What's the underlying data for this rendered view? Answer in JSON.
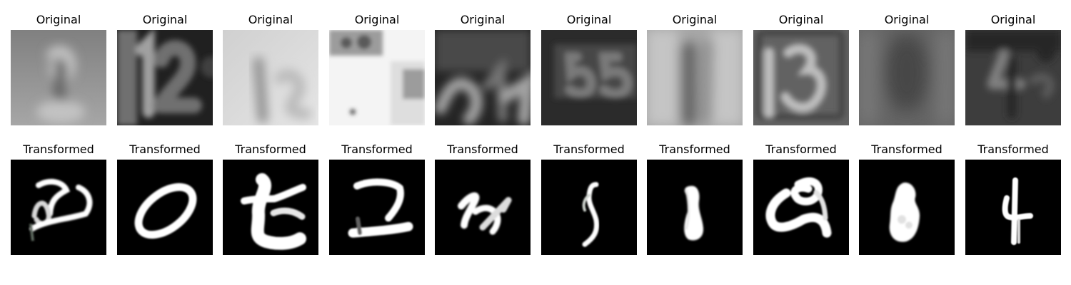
{
  "figure": {
    "rows": [
      {
        "id": "original",
        "panels": [
          {
            "title": "Original",
            "content": "blurry grayscale digit-like house number image",
            "colors": [
              "#666666",
              "#808080",
              "#a6a6a6",
              "#c2c2c2"
            ]
          },
          {
            "title": "Original",
            "content": "dark grayscale house number image showing 12",
            "colors": [
              "#202020",
              "#3f3f3f",
              "#707070",
              "#a0a0a0"
            ]
          },
          {
            "title": "Original",
            "content": "light grayscale blurred number image",
            "colors": [
              "#8f8f8f",
              "#b8b8b8",
              "#d0d0d0",
              "#e5e5e5"
            ]
          },
          {
            "title": "Original",
            "content": "very bright grayscale image with dark upper left region",
            "colors": [
              "#5a5a5a",
              "#9c9c9c",
              "#dedede",
              "#f4f4f4"
            ]
          },
          {
            "title": "Original",
            "content": "dark grayscale number image",
            "colors": [
              "#242424",
              "#4a4a4a",
              "#747474",
              "#a2a2a2"
            ]
          },
          {
            "title": "Original",
            "content": "dark grayscale house number image showing 55",
            "colors": [
              "#2b2b2b",
              "#464646",
              "#5d5d5d",
              "#7a7a7a"
            ]
          },
          {
            "title": "Original",
            "content": "light blurred grayscale image with vertical stroke",
            "colors": [
              "#666666",
              "#898989",
              "#a7a7a7",
              "#c5c5c5"
            ]
          },
          {
            "title": "Original",
            "content": "grayscale house number image showing 13",
            "colors": [
              "#444444",
              "#626262",
              "#888888",
              "#bdbdbd"
            ]
          },
          {
            "title": "Original",
            "content": "flat dark gray blurred image",
            "colors": [
              "#464646",
              "#545454",
              "#646464",
              "#7a7a7a"
            ]
          },
          {
            "title": "Original",
            "content": "dark grayscale number image",
            "colors": [
              "#262626",
              "#3d3d3d",
              "#5a5a5a",
              "#808080"
            ]
          }
        ]
      },
      {
        "id": "transformed",
        "panels": [
          {
            "title": "Transformed",
            "content": "white handwritten-like digit on black background",
            "colors": [
              "#000000",
              "#5f6b60",
              "#d8d8d8",
              "#ffffff"
            ]
          },
          {
            "title": "Transformed",
            "content": "white handwritten-like digit 0 on black background",
            "colors": [
              "#000000",
              "#707070",
              "#e8e8e8",
              "#ffffff"
            ]
          },
          {
            "title": "Transformed",
            "content": "white handwritten-like blob digit on black background",
            "colors": [
              "#000000",
              "#6d6d6d",
              "#e7e7e7",
              "#ffffff"
            ]
          },
          {
            "title": "Transformed",
            "content": "white handwritten-like digit 2 on black background",
            "colors": [
              "#000000",
              "#626262",
              "#e0e0e0",
              "#ffffff"
            ]
          },
          {
            "title": "Transformed",
            "content": "white handwritten-like digit on black background",
            "colors": [
              "#000000",
              "#5e665c",
              "#dddddd",
              "#ffffff"
            ]
          },
          {
            "title": "Transformed",
            "content": "white handwritten-like digit 5 on black background",
            "colors": [
              "#000000",
              "#4f5a51",
              "#d0d6d0",
              "#ffffff"
            ]
          },
          {
            "title": "Transformed",
            "content": "white handwritten-like digit 1 on black background",
            "colors": [
              "#000000",
              "#707070",
              "#e6e6e6",
              "#ffffff"
            ]
          },
          {
            "title": "Transformed",
            "content": "white handwritten-like digit on black background",
            "colors": [
              "#000000",
              "#646464",
              "#e3e3e3",
              "#ffffff"
            ]
          },
          {
            "title": "Transformed",
            "content": "white blob-like digit on black background",
            "colors": [
              "#000000",
              "#6c6c6c",
              "#e1e1e1",
              "#ffffff"
            ]
          },
          {
            "title": "Transformed",
            "content": "white handwritten-like digit 4 on black background",
            "colors": [
              "#000000",
              "#5d5d5d",
              "#dadada",
              "#ffffff"
            ]
          }
        ]
      }
    ]
  }
}
